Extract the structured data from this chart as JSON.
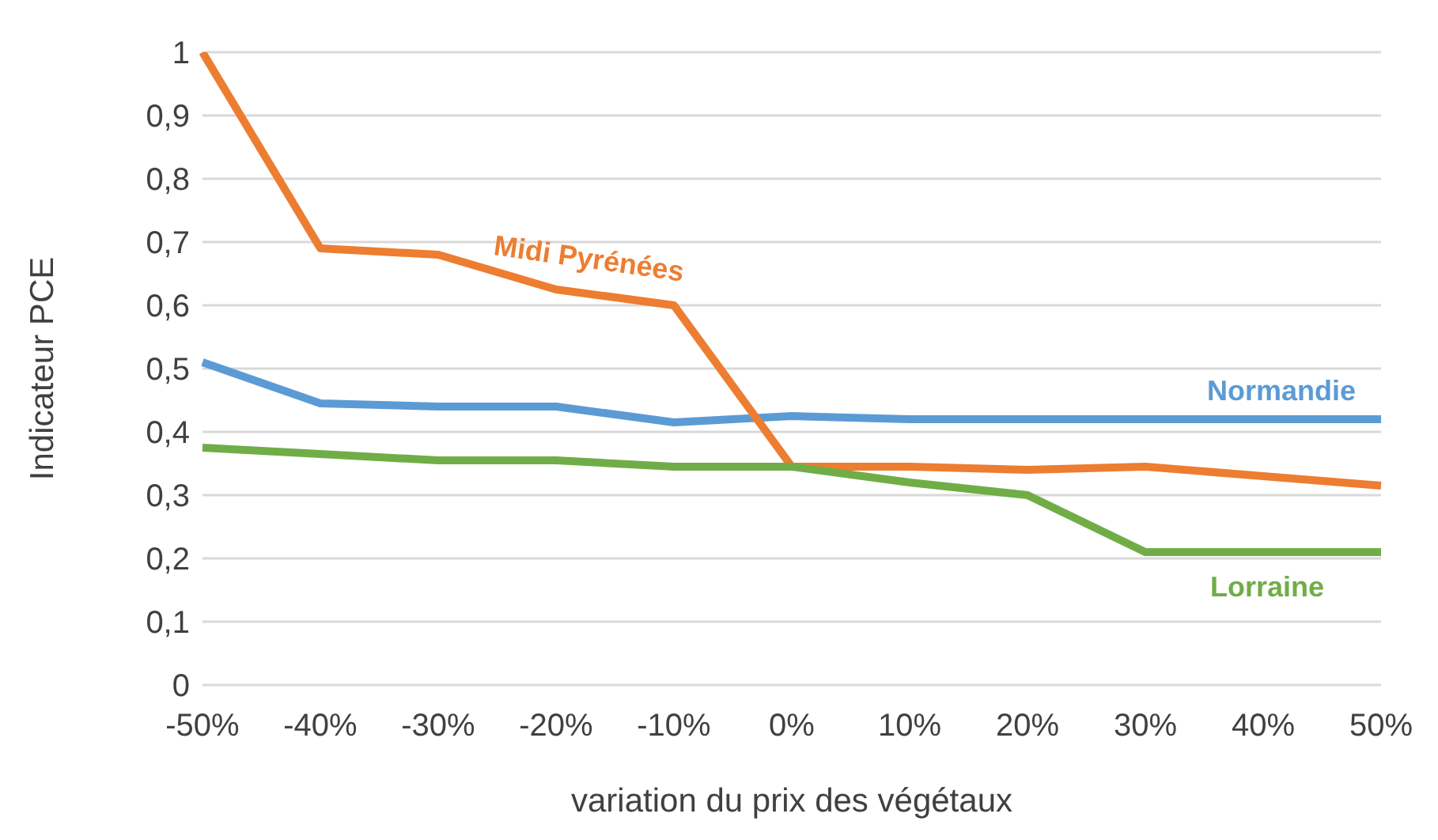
{
  "chart_data": {
    "type": "line",
    "xlabel": "variation du prix des végétaux",
    "ylabel": "Indicateur PCE",
    "categories": [
      "-50%",
      "-40%",
      "-30%",
      "-20%",
      "-10%",
      "0%",
      "10%",
      "20%",
      "30%",
      "40%",
      "50%"
    ],
    "series": [
      {
        "name": "Normandie",
        "color": "#5b9bd5",
        "values": [
          0.51,
          0.445,
          0.44,
          0.44,
          0.415,
          0.425,
          0.42,
          0.42,
          0.42,
          0.42,
          0.42
        ]
      },
      {
        "name": "Midi Pyrénées",
        "color": "#ed7d31",
        "values": [
          1.0,
          0.69,
          0.68,
          0.625,
          0.6,
          0.345,
          0.345,
          0.34,
          0.345,
          0.33,
          0.315
        ]
      },
      {
        "name": "Lorraine",
        "color": "#70ad47",
        "values": [
          0.375,
          0.365,
          0.355,
          0.355,
          0.345,
          0.345,
          0.32,
          0.3,
          0.21,
          0.21,
          0.21
        ]
      }
    ],
    "ylim": [
      0,
      1
    ],
    "yticks": [
      {
        "value": 0,
        "label": "0"
      },
      {
        "value": 0.1,
        "label": "0,1"
      },
      {
        "value": 0.2,
        "label": "0,2"
      },
      {
        "value": 0.3,
        "label": "0,3"
      },
      {
        "value": 0.4,
        "label": "0,4"
      },
      {
        "value": 0.5,
        "label": "0,5"
      },
      {
        "value": 0.6,
        "label": "0,6"
      },
      {
        "value": 0.7,
        "label": "0,7"
      },
      {
        "value": 0.8,
        "label": "0,8"
      },
      {
        "value": 0.9,
        "label": "0,9"
      },
      {
        "value": 1,
        "label": "1"
      }
    ],
    "grid": "y",
    "marker": "none",
    "line_style": "solid"
  }
}
